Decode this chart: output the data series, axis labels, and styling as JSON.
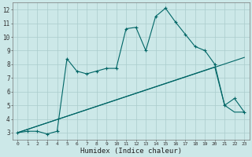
{
  "xlabel": "Humidex (Indice chaleur)",
  "bg_color": "#cce8e8",
  "grid_color": "#aacccc",
  "line_color": "#006666",
  "line1_x": [
    0,
    1,
    2,
    3,
    4,
    5,
    6,
    7,
    8,
    9,
    10,
    11,
    12,
    13,
    14,
    15,
    16,
    17,
    18,
    19,
    20,
    21,
    22,
    23
  ],
  "line1_y": [
    3.0,
    3.1,
    3.1,
    2.9,
    3.1,
    8.4,
    7.5,
    7.3,
    7.5,
    7.7,
    7.7,
    10.6,
    10.7,
    9.0,
    11.5,
    12.1,
    11.1,
    10.2,
    9.3,
    9.0,
    8.0,
    5.0,
    5.5,
    4.5
  ],
  "line2_x": [
    0,
    23
  ],
  "line2_y": [
    3.0,
    8.5
  ],
  "line3_x": [
    0,
    20,
    21,
    22,
    23
  ],
  "line3_y": [
    3.0,
    7.8,
    5.0,
    4.5,
    4.5
  ],
  "xlim": [
    -0.5,
    23.5
  ],
  "ylim": [
    2.5,
    12.5
  ],
  "xticks": [
    0,
    1,
    2,
    3,
    4,
    5,
    6,
    7,
    8,
    9,
    10,
    11,
    12,
    13,
    14,
    15,
    16,
    17,
    18,
    19,
    20,
    21,
    22,
    23
  ],
  "yticks": [
    3,
    4,
    5,
    6,
    7,
    8,
    9,
    10,
    11,
    12
  ],
  "xtick_fontsize": 4.5,
  "ytick_fontsize": 5.5,
  "xlabel_fontsize": 6.5
}
